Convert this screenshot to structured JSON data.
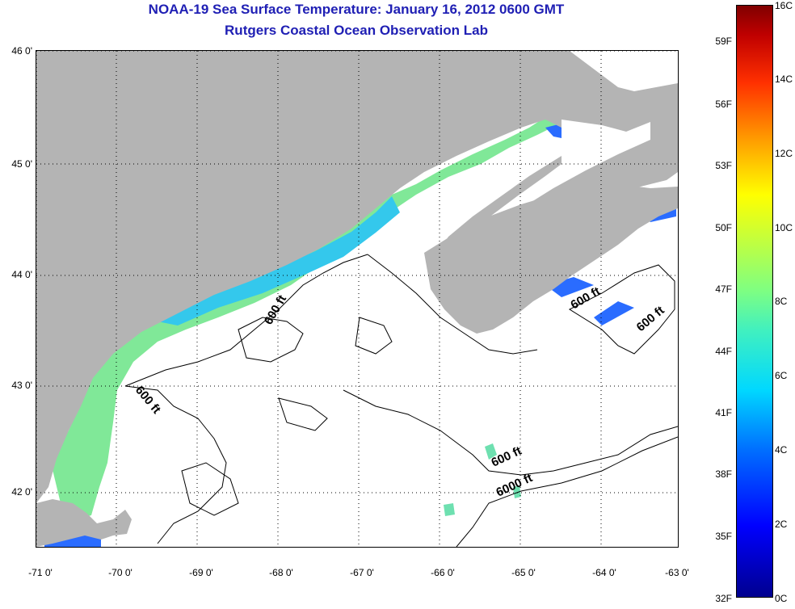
{
  "title_line1": "NOAA-19 Sea Surface Temperature:  January 16, 2012 0600 GMT",
  "title_line2": "Rutgers Coastal Ocean Observation Lab",
  "lat_labels": [
    "46 0'",
    "45 0'",
    "44 0'",
    "43 0'",
    "42 0'"
  ],
  "lon_labels": [
    "-71 0'",
    "-70 0'",
    "-69 0'",
    "-68 0'",
    "-67 0'",
    "-66 0'",
    "-65 0'",
    "-64 0'",
    "-63 0'"
  ],
  "contour_labels": [
    "600 ft",
    "600 ft",
    "600 ft",
    "600 ft",
    "600 ft",
    "6000 ft"
  ],
  "colorbar": {
    "fahrenheit": [
      "59F",
      "56F",
      "53F",
      "50F",
      "47F",
      "44F",
      "41F",
      "38F",
      "35F",
      "32F"
    ],
    "celsius": [
      "16C",
      "14C",
      "12C",
      "10C",
      "8C",
      "6C",
      "4C",
      "2C",
      "0C"
    ]
  },
  "colors": {
    "land": "#b4b4b4",
    "title": "#1f1fb4",
    "warm_water": "#7fe890",
    "cool_water": "#30c8f0",
    "cold_water": "#2060ff"
  }
}
